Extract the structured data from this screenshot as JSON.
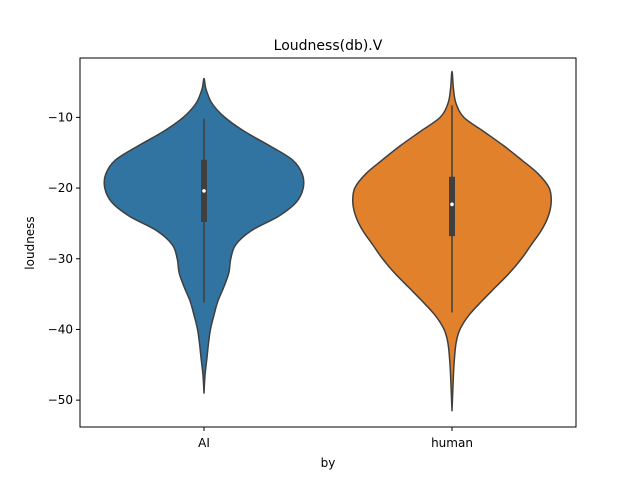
{
  "chart_data": {
    "type": "violin",
    "title": "Loudness(db).V",
    "xlabel": "by",
    "ylabel": "loudness",
    "categories": [
      "AI",
      "human"
    ],
    "yticks": [
      -10,
      -20,
      -30,
      -40,
      -50
    ],
    "ytick_labels": [
      "−10",
      "−20",
      "−30",
      "−40",
      "−50"
    ],
    "ylim": [
      -53.8,
      -1.6
    ],
    "grid": false,
    "legend": "none",
    "colors": {
      "AI": "#3274a1",
      "human": "#e1812c",
      "outline": "#3f3f3f",
      "box": "#3f3f3f",
      "median": "#ffffff"
    },
    "series": [
      {
        "name": "AI",
        "min": -49.0,
        "max": -4.5,
        "q1": -24.8,
        "median": -20.4,
        "q3": -16.0,
        "whisker_low": -36.2,
        "whisker_high": -10.2,
        "density": [
          [
            -49.0,
            0.0
          ],
          [
            -46.5,
            0.01
          ],
          [
            -44.0,
            0.03
          ],
          [
            -42.0,
            0.045
          ],
          [
            -40.0,
            0.065
          ],
          [
            -38.0,
            0.1
          ],
          [
            -36.0,
            0.14
          ],
          [
            -34.0,
            0.2
          ],
          [
            -32.0,
            0.25
          ],
          [
            -30.0,
            0.27
          ],
          [
            -28.0,
            0.32
          ],
          [
            -26.0,
            0.48
          ],
          [
            -24.0,
            0.75
          ],
          [
            -22.0,
            0.93
          ],
          [
            -20.0,
            1.0
          ],
          [
            -18.0,
            0.99
          ],
          [
            -16.0,
            0.89
          ],
          [
            -14.0,
            0.66
          ],
          [
            -12.0,
            0.41
          ],
          [
            -10.0,
            0.21
          ],
          [
            -8.0,
            0.08
          ],
          [
            -6.0,
            0.02
          ],
          [
            -4.5,
            0.0
          ]
        ]
      },
      {
        "name": "human",
        "min": -51.5,
        "max": -3.5,
        "q1": -26.8,
        "median": -22.3,
        "q3": -18.4,
        "whisker_low": -37.6,
        "whisker_high": -8.3,
        "density": [
          [
            -51.5,
            0.0
          ],
          [
            -48.0,
            0.01
          ],
          [
            -45.0,
            0.02
          ],
          [
            -42.0,
            0.04
          ],
          [
            -40.0,
            0.08
          ],
          [
            -38.0,
            0.17
          ],
          [
            -36.0,
            0.3
          ],
          [
            -34.0,
            0.44
          ],
          [
            -32.0,
            0.58
          ],
          [
            -30.0,
            0.7
          ],
          [
            -28.0,
            0.8
          ],
          [
            -26.0,
            0.9
          ],
          [
            -24.0,
            0.97
          ],
          [
            -22.0,
            1.0
          ],
          [
            -20.0,
            0.98
          ],
          [
            -18.0,
            0.87
          ],
          [
            -16.0,
            0.7
          ],
          [
            -14.0,
            0.52
          ],
          [
            -12.0,
            0.32
          ],
          [
            -10.0,
            0.12
          ],
          [
            -8.0,
            0.04
          ],
          [
            -6.0,
            0.015
          ],
          [
            -3.5,
            0.0
          ]
        ]
      }
    ]
  }
}
